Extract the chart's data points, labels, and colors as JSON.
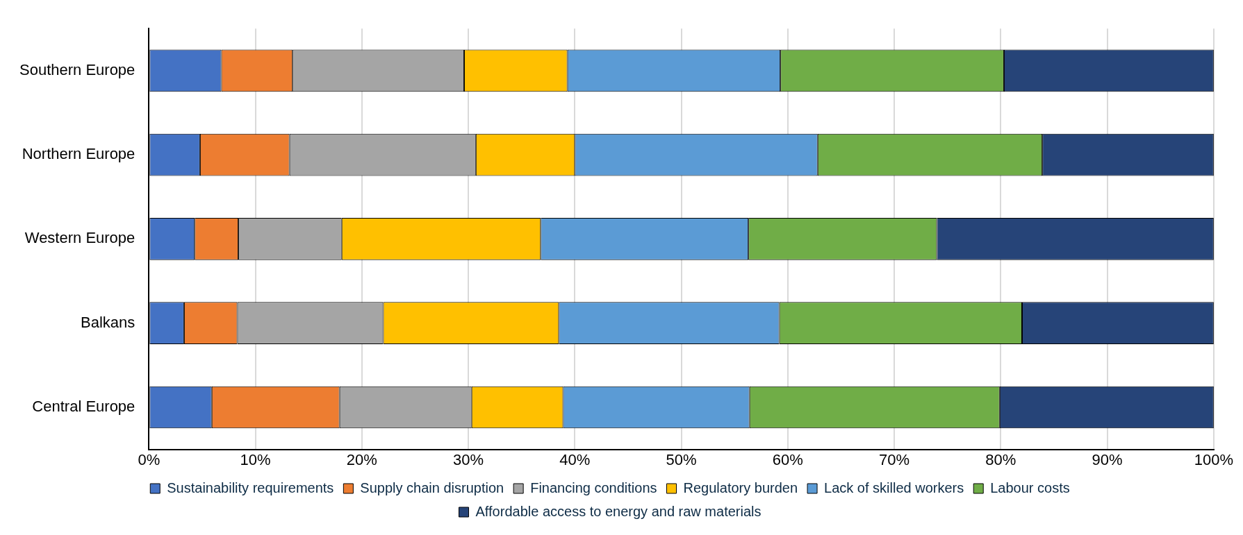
{
  "chart_data": {
    "type": "bar",
    "orientation": "horizontal",
    "stacked": true,
    "categories": [
      "Southern Europe",
      "Northern Europe",
      "Western Europe",
      "Balkans",
      "Central Europe"
    ],
    "series": [
      {
        "name": "Sustainability requirements",
        "color": "#4472c4",
        "values": [
          6.8,
          4.8,
          4.3,
          3.3,
          5.9
        ]
      },
      {
        "name": "Supply chain disruption",
        "color": "#ed7d31",
        "values": [
          6.7,
          8.4,
          4.1,
          5.0,
          12.0
        ]
      },
      {
        "name": "Financing conditions",
        "color": "#a5a5a5",
        "values": [
          16.1,
          17.5,
          9.7,
          13.7,
          12.4
        ]
      },
      {
        "name": "Regulatory burden",
        "color": "#ffc000",
        "values": [
          9.7,
          9.3,
          18.7,
          16.5,
          8.6
        ]
      },
      {
        "name": "Lack of skilled workers",
        "color": "#5b9bd5",
        "values": [
          20.0,
          22.8,
          19.5,
          20.7,
          17.5
        ]
      },
      {
        "name": "Labour costs",
        "color": "#70ad47",
        "values": [
          21.0,
          21.1,
          17.7,
          22.8,
          23.5
        ]
      },
      {
        "name": "Affordable access to energy and raw materials",
        "color": "#264478",
        "values": [
          19.7,
          16.1,
          26.0,
          18.0,
          20.1
        ]
      }
    ],
    "xlim": [
      0,
      100
    ],
    "xticks": [
      {
        "value": 0,
        "label": "0%"
      },
      {
        "value": 10,
        "label": "10%"
      },
      {
        "value": 20,
        "label": "20%"
      },
      {
        "value": 30,
        "label": "30%"
      },
      {
        "value": 40,
        "label": "40%"
      },
      {
        "value": 50,
        "label": "50%"
      },
      {
        "value": 60,
        "label": "60%"
      },
      {
        "value": 70,
        "label": "70%"
      },
      {
        "value": 80,
        "label": "80%"
      },
      {
        "value": 90,
        "label": "90%"
      },
      {
        "value": 100,
        "label": "100%"
      }
    ],
    "grid": "x",
    "legend": "bottom"
  }
}
